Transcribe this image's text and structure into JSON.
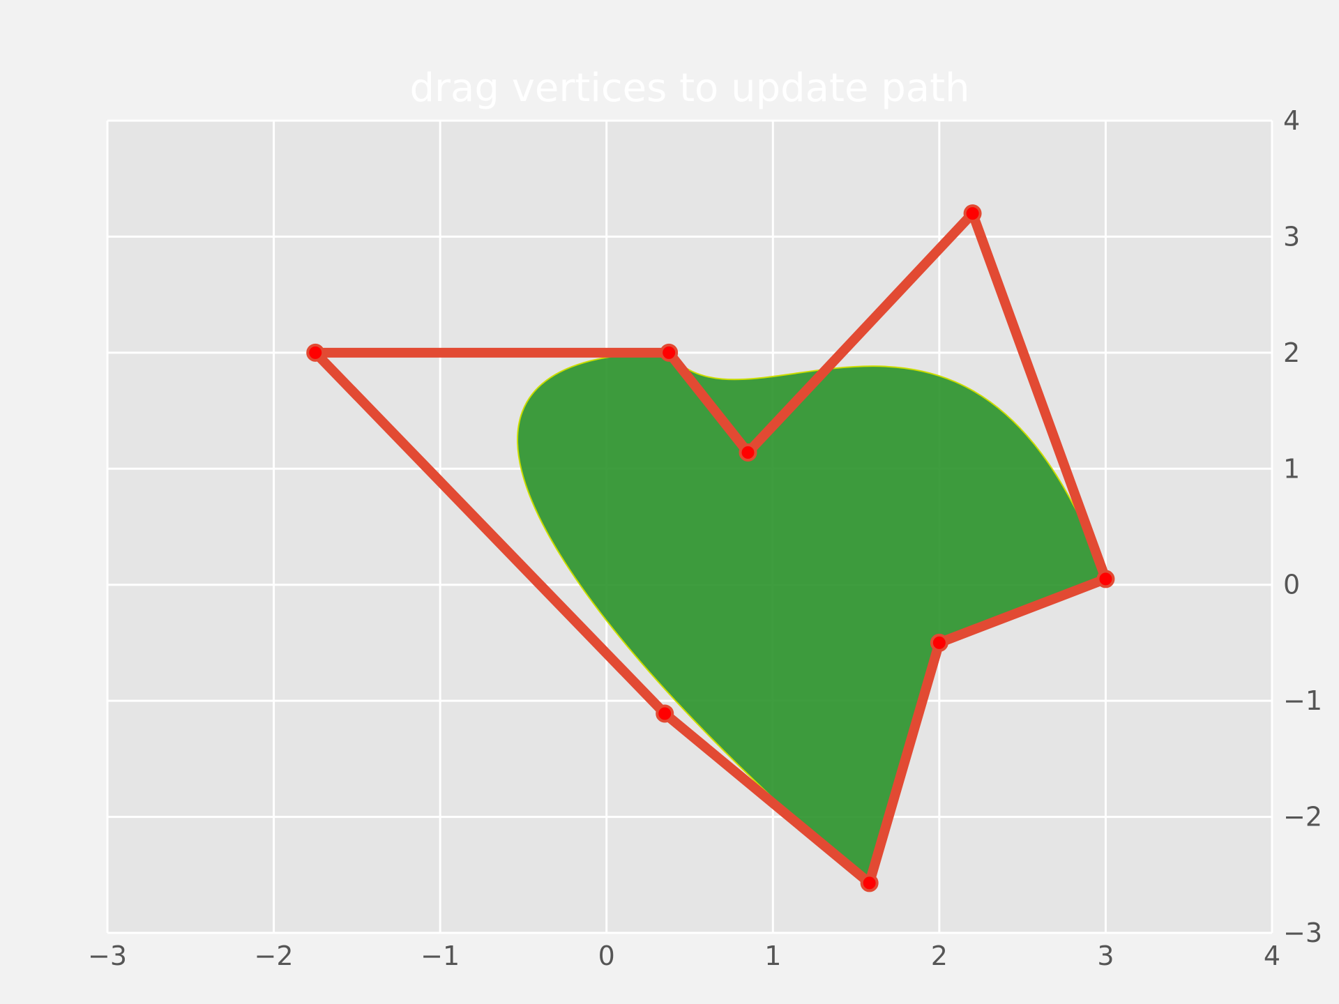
{
  "chart_data": {
    "type": "line",
    "title": "drag vertices to update path",
    "xlabel": "",
    "ylabel": "",
    "xlim": [
      -3,
      4
    ],
    "ylim": [
      -3,
      4
    ],
    "grid": true,
    "y_axis_side": "right",
    "x_ticks": [
      -3,
      -2,
      -1,
      0,
      1,
      2,
      3,
      4
    ],
    "y_ticks": [
      -3,
      -2,
      -1,
      0,
      1,
      2,
      3,
      4
    ],
    "x_tick_labels": [
      "−3",
      "−2",
      "−1",
      "0",
      "1",
      "2",
      "3",
      "4"
    ],
    "y_tick_labels": [
      "−3",
      "−2",
      "−1",
      "0",
      "1",
      "2",
      "3",
      "4"
    ],
    "vertices": [
      {
        "x": 1.58,
        "y": -2.57
      },
      {
        "x": 0.35,
        "y": -1.11
      },
      {
        "x": -1.75,
        "y": 2.0
      },
      {
        "x": 0.375,
        "y": 2.0
      },
      {
        "x": 0.85,
        "y": 1.14
      },
      {
        "x": 2.2,
        "y": 3.2
      },
      {
        "x": 3.0,
        "y": 0.05
      },
      {
        "x": 2.0,
        "y": -0.5
      }
    ],
    "path_color": "#e24a33",
    "vertex_color": "#ff0000",
    "fill_color": "#2a922a",
    "fill_edge_color": "#ccdd00",
    "background_color": "#e5e5e5",
    "figure_color": "#f2f2f2"
  }
}
